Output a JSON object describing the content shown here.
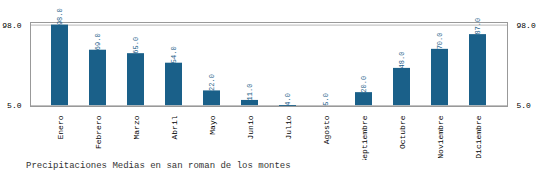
{
  "chart_data": {
    "type": "bar",
    "title": "Precipitaciones Medias en san roman de los montes",
    "categories": [
      "Enero",
      "Febrero",
      "Marzo",
      "Abril",
      "Mayo",
      "Junio",
      "Julio",
      "Agosto",
      "Septiembre",
      "Octubre",
      "Noviembre",
      "Diciembre"
    ],
    "values": [
      98.0,
      69.0,
      65.0,
      54.0,
      22.0,
      11.0,
      4.0,
      5.0,
      20.0,
      48.0,
      70.0,
      87.0
    ],
    "value_labels": [
      "98.0",
      "69.0",
      "65.0",
      "54.0",
      "22.0",
      "11.0",
      "4.0",
      "5.0",
      "20.0",
      "48.0",
      "70.0",
      "87.0"
    ],
    "color": "#1a6089",
    "ylim": [
      4,
      101
    ],
    "yticks": [
      {
        "value": 5,
        "label": "5.0"
      },
      {
        "value": 98,
        "label": "98.0"
      }
    ],
    "grid": true,
    "data_labels": true
  }
}
